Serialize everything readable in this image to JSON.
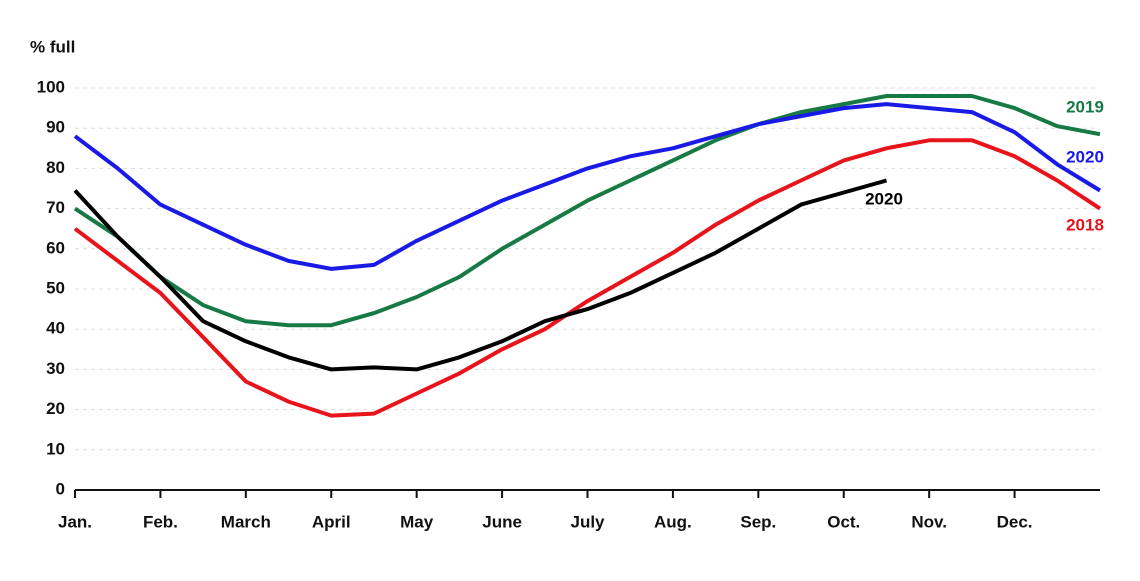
{
  "chart_data": {
    "type": "line",
    "y_axis_label": "% full",
    "categories": [
      "Jan.",
      null,
      "Feb.",
      null,
      "March",
      null,
      "April",
      null,
      "May",
      null,
      "June",
      null,
      "July",
      null,
      "Aug.",
      null,
      "Sep.",
      null,
      "Oct.",
      null,
      "Nov.",
      null,
      "Dec.",
      null,
      null
    ],
    "series": [
      {
        "name": "2019",
        "color": "#177a45",
        "values": [
          70,
          63,
          53,
          46,
          42,
          41,
          41,
          44,
          48,
          53,
          60,
          66,
          72,
          77,
          82,
          87,
          91,
          94,
          96,
          98,
          98,
          98,
          95,
          90.5,
          88.5
        ]
      },
      {
        "name": "2020",
        "color": "#1a1ae6",
        "values": [
          88,
          80,
          71,
          66,
          61,
          57,
          55,
          56,
          62,
          67,
          72,
          76,
          80,
          83,
          85,
          88,
          91,
          93,
          95,
          96,
          95,
          94,
          89,
          81,
          74.5
        ]
      },
      {
        "name": "2018",
        "color": "#e8141c",
        "values": [
          65,
          57,
          49,
          38,
          27,
          22,
          18.5,
          19,
          24,
          29,
          35,
          40,
          47,
          53,
          59,
          66,
          72,
          77,
          82,
          85,
          87,
          87,
          83,
          77,
          70
        ]
      },
      {
        "name": "2020",
        "color": "#000000",
        "values": [
          74.5,
          63,
          53,
          42,
          37,
          33,
          30,
          30.5,
          30,
          33,
          37,
          42,
          45,
          49,
          54,
          59,
          65,
          71,
          74,
          77,
          null,
          null,
          null,
          null,
          null
        ]
      }
    ],
    "ylim": [
      0,
      100
    ],
    "yticks": [
      0,
      10,
      20,
      30,
      40,
      50,
      60,
      70,
      80,
      90,
      100
    ],
    "grid": true
  }
}
